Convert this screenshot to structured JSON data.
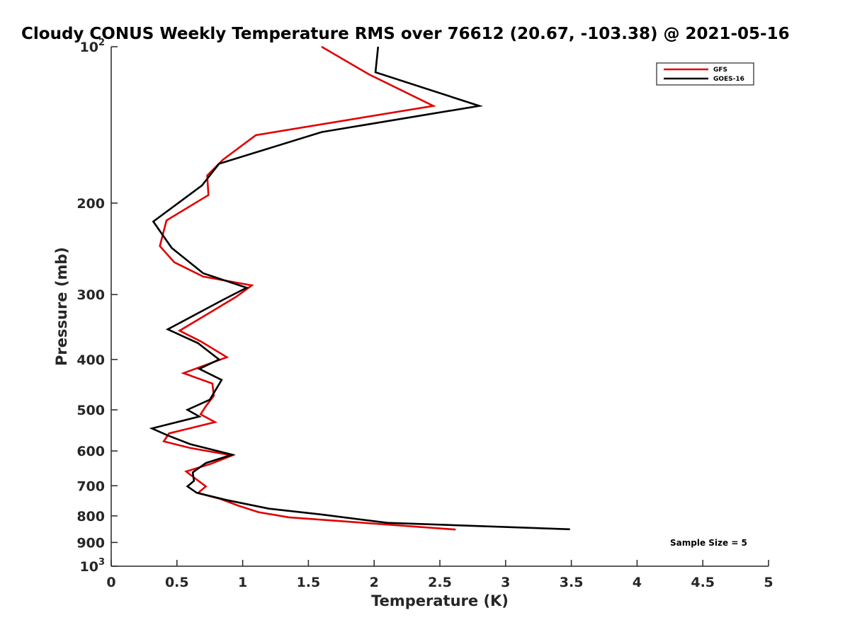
{
  "chart_data": {
    "type": "line",
    "title": "Cloudy CONUS Weekly Temperature RMS over 76612 (20.67, -103.38) @ 2021-05-16",
    "xlabel": "Temperature (K)",
    "ylabel": "Pressure (mb)",
    "xlim": [
      0,
      5
    ],
    "ylim": [
      100,
      1000
    ],
    "y_scale": "log",
    "y_reversed": true,
    "x_ticks": [
      0,
      0.5,
      1,
      1.5,
      2,
      2.5,
      3,
      3.5,
      4,
      4.5,
      5
    ],
    "x_tick_labels": [
      "0",
      "0.5",
      "1",
      "1.5",
      "2",
      "2.5",
      "3",
      "3.5",
      "4",
      "4.5",
      "5"
    ],
    "y_ticks": [
      100,
      200,
      300,
      400,
      500,
      600,
      700,
      800,
      900,
      1000
    ],
    "y_tick_labels": [
      {
        "base": "10",
        "exp": "2"
      },
      {
        "base": "200",
        "exp": ""
      },
      {
        "base": "300",
        "exp": ""
      },
      {
        "base": "400",
        "exp": ""
      },
      {
        "base": "500",
        "exp": ""
      },
      {
        "base": "600",
        "exp": ""
      },
      {
        "base": "700",
        "exp": ""
      },
      {
        "base": "800",
        "exp": ""
      },
      {
        "base": "900",
        "exp": ""
      },
      {
        "base": "10",
        "exp": "3"
      }
    ],
    "grid": false,
    "legend_position": "top-right",
    "series": [
      {
        "name": "GFS",
        "color": "#e00000",
        "x": [
          1.6,
          1.96,
          2.45,
          1.1,
          0.85,
          0.73,
          0.74,
          0.42,
          0.37,
          0.48,
          0.7,
          1.07,
          0.95,
          0.75,
          0.52,
          0.68,
          0.88,
          0.55,
          0.77,
          0.78,
          0.72,
          0.68,
          0.79,
          0.44,
          0.4,
          0.6,
          0.92,
          0.76,
          0.57,
          0.64,
          0.72,
          0.66,
          0.83,
          0.97,
          1.12,
          1.35,
          2.62
        ],
        "y": [
          100,
          113,
          130,
          148,
          165,
          177,
          193,
          216,
          242,
          260,
          277,
          288,
          303,
          325,
          352,
          369,
          396,
          425,
          445,
          470,
          492,
          510,
          528,
          555,
          575,
          592,
          612,
          635,
          657,
          678,
          702,
          723,
          742,
          765,
          787,
          805,
          850
        ]
      },
      {
        "name": "GOES-16",
        "color": "#000000",
        "x": [
          2.03,
          2.01,
          2.8,
          1.6,
          0.82,
          0.69,
          0.32,
          0.46,
          0.7,
          1.03,
          0.85,
          0.43,
          0.66,
          0.82,
          0.67,
          0.84,
          0.75,
          0.58,
          0.67,
          0.31,
          0.43,
          0.6,
          0.92,
          0.72,
          0.62,
          0.63,
          0.58,
          0.65,
          0.87,
          1.2,
          1.6,
          2.1,
          3.49
        ],
        "y": [
          100,
          112,
          130,
          146,
          168,
          185,
          217,
          244,
          273,
          291,
          307,
          350,
          372,
          400,
          417,
          438,
          478,
          500,
          515,
          543,
          560,
          582,
          610,
          633,
          660,
          685,
          702,
          722,
          745,
          775,
          795,
          825,
          849
        ]
      }
    ],
    "annotation": "Sample Size = 5"
  }
}
